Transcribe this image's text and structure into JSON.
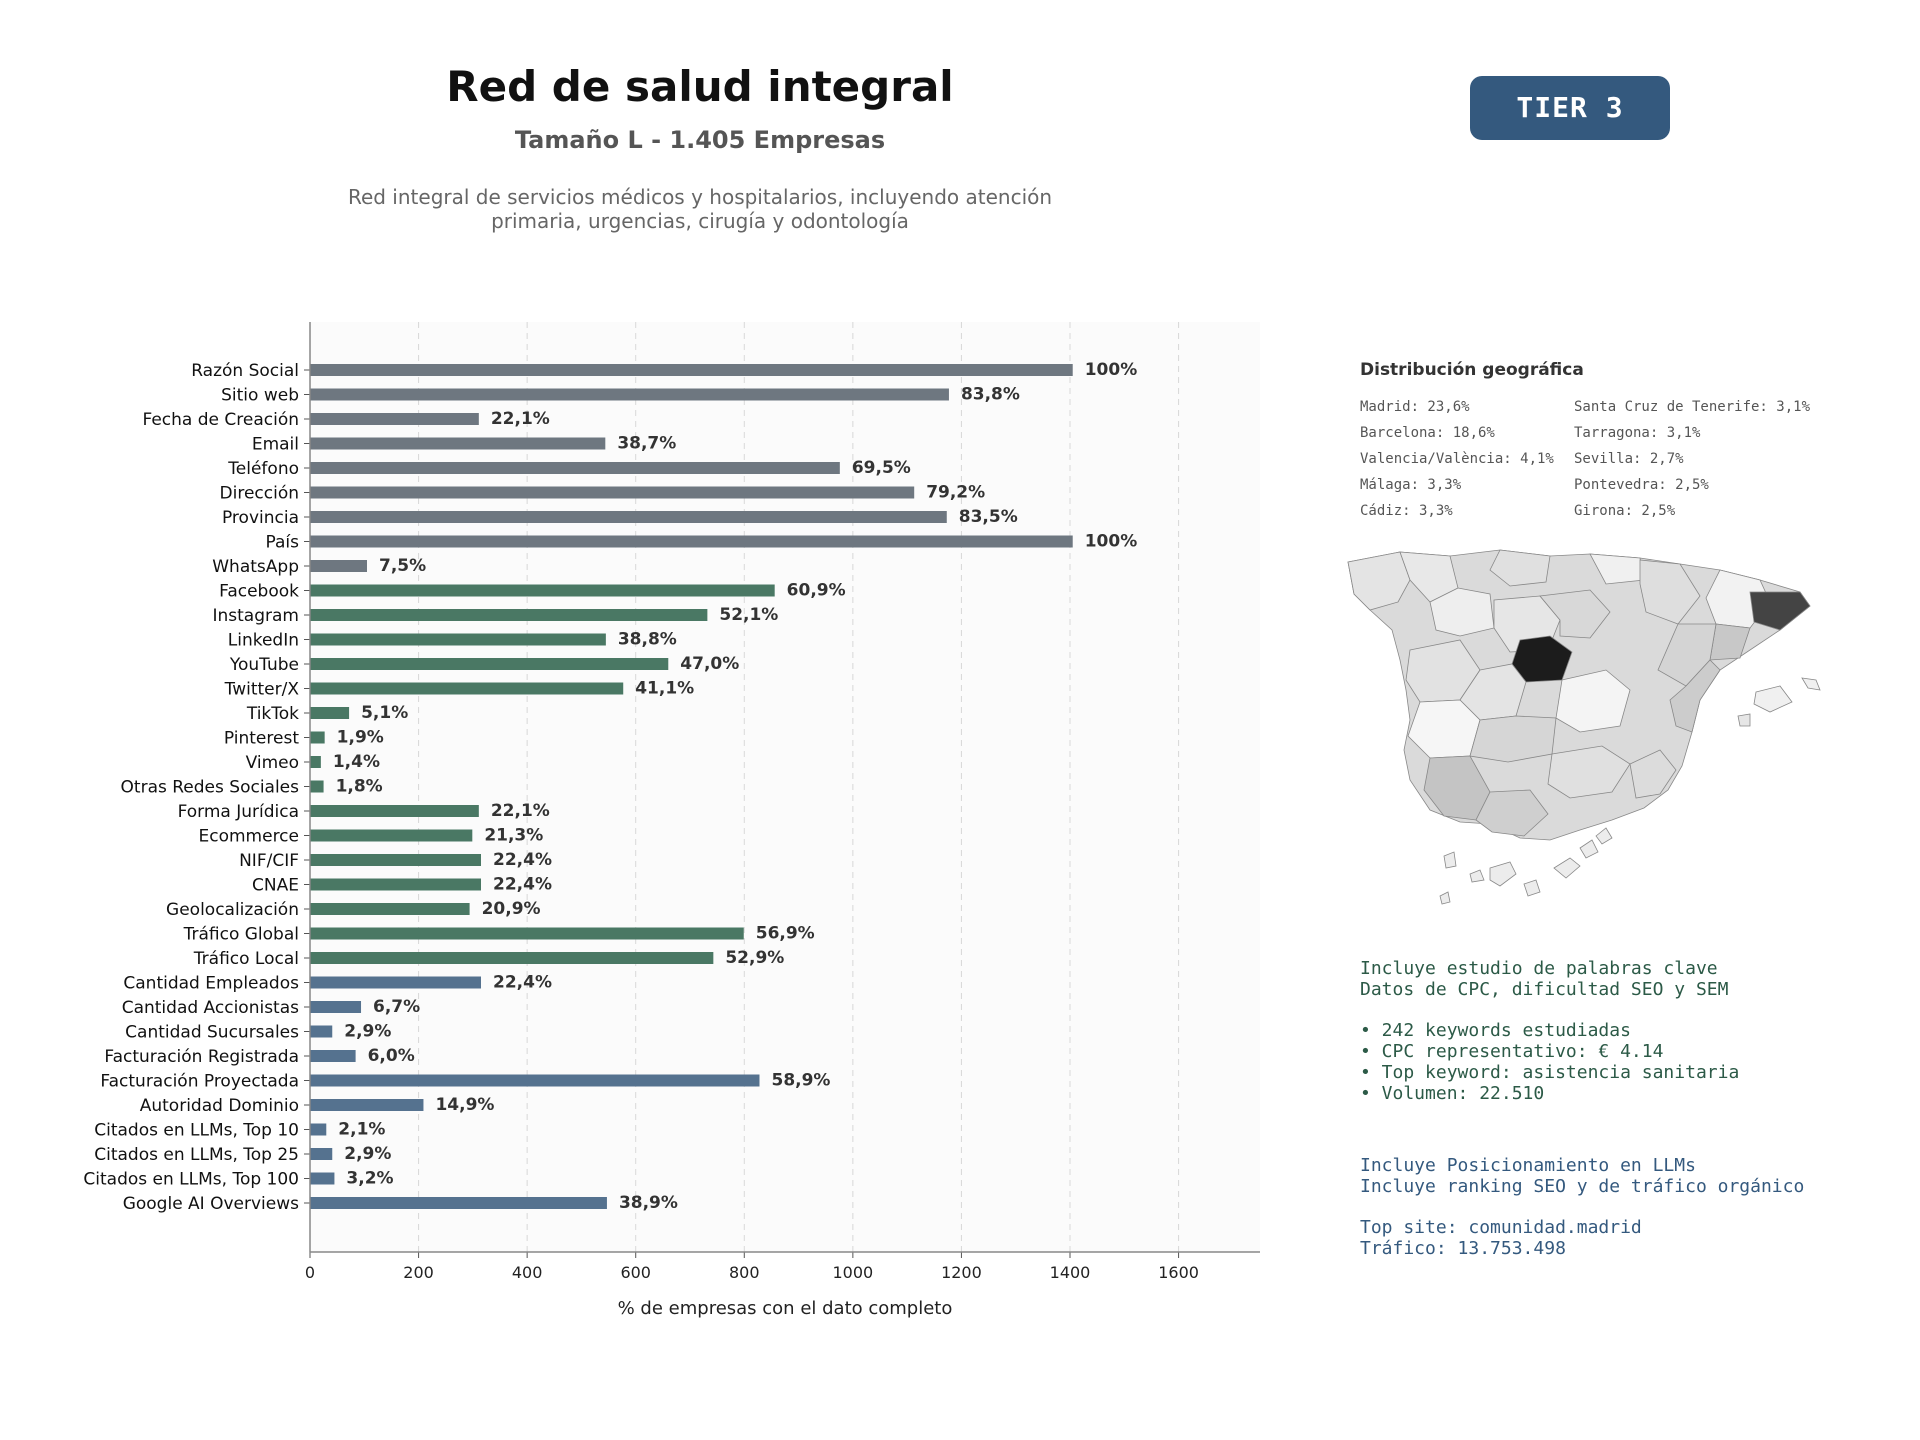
{
  "header": {
    "title": "Red de salud integral",
    "subtitle": "Tamaño L - 1.405 Empresas",
    "description_line1": "Red integral de servicios médicos y hospitalarios, incluyendo atención",
    "description_line2": "primaria, urgencias, cirugía y odontología",
    "tier_label": "TIER 3"
  },
  "chart_data": {
    "type": "bar",
    "orientation": "horizontal",
    "xlabel": "% de empresas con el dato completo",
    "xlim": [
      0,
      1750
    ],
    "xticks": [
      0,
      200,
      400,
      600,
      800,
      1000,
      1200,
      1400,
      1600
    ],
    "grid": "vertical dashed",
    "categories": [
      "Razón Social",
      "Sitio web",
      "Fecha de Creación",
      "Email",
      "Teléfono",
      "Dirección",
      "Provincia",
      "País",
      "WhatsApp",
      "Facebook",
      "Instagram",
      "LinkedIn",
      "YouTube",
      "Twitter/X",
      "TikTok",
      "Pinterest",
      "Vimeo",
      "Otras Redes Sociales",
      "Forma Jurídica",
      "Ecommerce",
      "NIF/CIF",
      "CNAE",
      "Geolocalización",
      "Tráfico Global",
      "Tráfico Local",
      "Cantidad Empleados",
      "Cantidad Accionistas",
      "Cantidad Sucursales",
      "Facturación Registrada",
      "Facturación Proyectada",
      "Autoridad Dominio",
      "Citados en LLMs, Top 10",
      "Citados en LLMs, Top 25",
      "Citados en LLMs, Top 100",
      "Google AI Overviews"
    ],
    "values": [
      1405,
      1177,
      311,
      544,
      976,
      1113,
      1173,
      1405,
      105,
      856,
      732,
      545,
      660,
      577,
      72,
      27,
      20,
      25,
      311,
      299,
      315,
      315,
      294,
      799,
      743,
      315,
      94,
      41,
      84,
      828,
      209,
      30,
      41,
      45,
      547
    ],
    "labels": [
      "100%",
      "83,8%",
      "22,1%",
      "38,7%",
      "69,5%",
      "79,2%",
      "83,5%",
      "100%",
      "7,5%",
      "60,9%",
      "52,1%",
      "38,8%",
      "47,0%",
      "41,1%",
      "5,1%",
      "1,9%",
      "1,4%",
      "1,8%",
      "22,1%",
      "21,3%",
      "22,4%",
      "22,4%",
      "20,9%",
      "56,9%",
      "52,9%",
      "22,4%",
      "6,7%",
      "2,9%",
      "6,0%",
      "58,9%",
      "14,9%",
      "2,1%",
      "2,9%",
      "3,2%",
      "38,9%"
    ],
    "groups": [
      0,
      0,
      0,
      0,
      0,
      0,
      0,
      0,
      0,
      1,
      1,
      1,
      1,
      1,
      1,
      1,
      1,
      1,
      1,
      1,
      1,
      1,
      1,
      1,
      1,
      2,
      2,
      2,
      2,
      2,
      2,
      2,
      2,
      2,
      2
    ],
    "group_colors": [
      "#6e7780",
      "#4a7864",
      "#55728f"
    ]
  },
  "geo": {
    "title": "Distribución geográfica",
    "items": [
      "Madrid: 23,6%",
      "Santa Cruz de Tenerife: 3,1%",
      "Barcelona: 18,6%",
      "Tarragona: 3,1%",
      "Valencia/València: 4,1%",
      "Sevilla: 2,7%",
      "Málaga: 3,3%",
      "Pontevedra: 2,5%",
      "Cádiz: 3,3%",
      "Girona: 2,5%"
    ]
  },
  "keywords": {
    "line1": "Incluye estudio de palabras clave",
    "line2": "Datos de CPC, dificultad SEO y SEM",
    "bullet1": "• 242 keywords estudiadas",
    "bullet2": "• CPC representativo: € 4.14",
    "bullet3": "• Top keyword: asistencia sanitaria",
    "bullet4": "• Volumen: 22.510"
  },
  "llm": {
    "line1": "Incluye Posicionamiento en LLMs",
    "line2": "Incluye ranking SEO y de tráfico orgánico",
    "line3": "Top site: comunidad.madrid",
    "line4": "Tráfico: 13.753.498"
  }
}
